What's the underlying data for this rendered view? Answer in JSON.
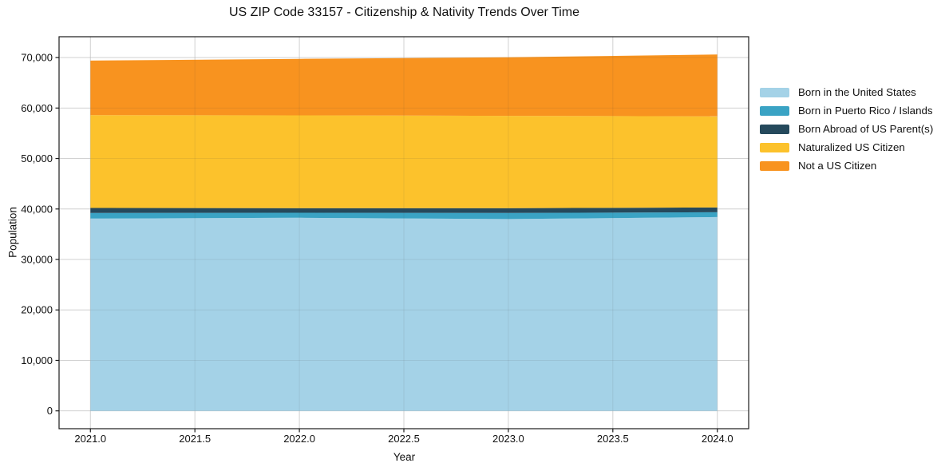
{
  "chart_data": {
    "type": "area",
    "stacked": true,
    "title": "US ZIP Code 33157 - Citizenship & Nativity Trends Over Time",
    "xlabel": "Year",
    "ylabel": "Population",
    "x": [
      2021,
      2022,
      2023,
      2024
    ],
    "series": [
      {
        "name": "Born in the United States",
        "color": "#a4d2e7",
        "values": [
          38100,
          38250,
          38000,
          38400
        ]
      },
      {
        "name": "Born in Puerto Rico / Islands",
        "color": "#3aa3c4",
        "values": [
          1100,
          1000,
          1200,
          950
        ]
      },
      {
        "name": "Born Abroad of US Parent(s)",
        "color": "#25495c",
        "values": [
          1000,
          900,
          950,
          950
        ]
      },
      {
        "name": "Naturalized US Citizen",
        "color": "#fcc22c",
        "values": [
          18400,
          18400,
          18300,
          18050
        ]
      },
      {
        "name": "Not a US Citizen",
        "color": "#f8931f",
        "values": [
          10800,
          11200,
          11600,
          12250
        ]
      }
    ],
    "cumulative_totals": [
      69400,
      69750,
      70050,
      70600
    ],
    "xlim": [
      2020.85,
      2024.15
    ],
    "ylim": [
      -3530,
      74130
    ],
    "x_ticks": [
      2021.0,
      2021.5,
      2022.0,
      2022.5,
      2023.0,
      2023.5,
      2024.0
    ],
    "x_tick_labels": [
      "2021.0",
      "2021.5",
      "2022.0",
      "2022.5",
      "2023.0",
      "2023.5",
      "2024.0"
    ],
    "y_ticks": [
      0,
      10000,
      20000,
      30000,
      40000,
      50000,
      60000,
      70000
    ],
    "y_tick_labels": [
      "0",
      "10,000",
      "20,000",
      "30,000",
      "40,000",
      "50,000",
      "60,000",
      "70,000"
    ],
    "grid": true,
    "legend_position": "right-outside",
    "colors": {
      "grid_line": "#e2e2e2",
      "spine": "#1a1a1a",
      "background": "#ffffff"
    }
  }
}
